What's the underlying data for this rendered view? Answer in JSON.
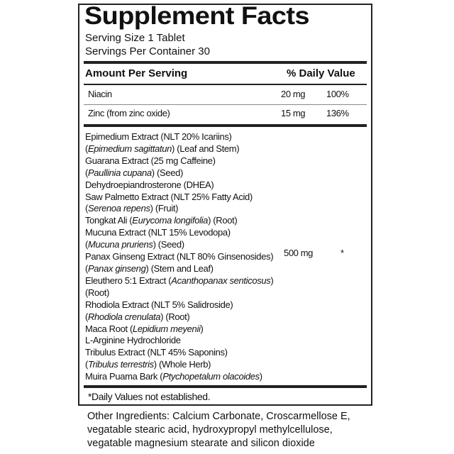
{
  "title": "Supplement Facts",
  "serving_size": "Serving Size 1 Tablet",
  "servings_per_container": "Servings Per Container 30",
  "header": {
    "amount": "Amount Per Serving",
    "daily_value": "% Daily Value"
  },
  "nutrients": [
    {
      "name": "Niacin",
      "amount": "20 mg",
      "dv": "100%"
    },
    {
      "name": "Zinc (from zinc oxide)",
      "amount": "15 mg",
      "dv": "136%"
    }
  ],
  "blend": {
    "amount": "500 mg",
    "dv": "*",
    "lines": [
      [
        {
          "t": "Epimedium Extract (NLT 20% Icariins)"
        }
      ],
      [
        {
          "t": "("
        },
        {
          "t": "Epimedium sagittatun",
          "i": true
        },
        {
          "t": ") (Leaf and Stem)"
        }
      ],
      [
        {
          "t": "Guarana Extract (25 mg Caffeine)"
        }
      ],
      [
        {
          "t": "("
        },
        {
          "t": "Paullinia cupana",
          "i": true
        },
        {
          "t": ")  (Seed)"
        }
      ],
      [
        {
          "t": "Dehydroepiandrosterone (DHEA)"
        }
      ],
      [
        {
          "t": "Saw Palmetto Extract (NLT 25% Fatty Acid)"
        }
      ],
      [
        {
          "t": "("
        },
        {
          "t": "Serenoa repens",
          "i": true
        },
        {
          "t": ") (Fruit)"
        }
      ],
      [
        {
          "t": "Tongkat Ali ("
        },
        {
          "t": "Eurycoma longifolia",
          "i": true
        },
        {
          "t": ") (Root)"
        }
      ],
      [
        {
          "t": "Mucuna Extract (NLT 15% Levodopa)"
        }
      ],
      [
        {
          "t": "("
        },
        {
          "t": "Mucuna pruriens",
          "i": true
        },
        {
          "t": ") (Seed)"
        }
      ],
      [
        {
          "t": "Panax Ginseng Extract (NLT 80% Ginsenosides)"
        }
      ],
      [
        {
          "t": "("
        },
        {
          "t": "Panax ginseng",
          "i": true
        },
        {
          "t": ") (Stem and Leaf)"
        }
      ],
      [
        {
          "t": "Eleuthero 5:1 Extract ("
        },
        {
          "t": "Acanthopanax senticosus",
          "i": true
        },
        {
          "t": ")"
        }
      ],
      [
        {
          "t": "(Root)"
        }
      ],
      [
        {
          "t": "Rhodiola Extract (NLT 5% Salidroside)"
        }
      ],
      [
        {
          "t": "("
        },
        {
          "t": "Rhodiola crenulata",
          "i": true
        },
        {
          "t": ") (Root)"
        }
      ],
      [
        {
          "t": "Maca Root ("
        },
        {
          "t": "Lepidium meyenii",
          "i": true
        },
        {
          "t": ")"
        }
      ],
      [
        {
          "t": "L-Arginine Hydrochloride"
        }
      ],
      [
        {
          "t": "Tribulus Extract (NLT 45% Saponins)"
        }
      ],
      [
        {
          "t": "("
        },
        {
          "t": "Tribulus terrestris",
          "i": true
        },
        {
          "t": ") (Whole Herb)"
        }
      ],
      [
        {
          "t": "Muira Puama Bark ("
        },
        {
          "t": "Ptychopetalum olacoides",
          "i": true
        },
        {
          "t": ")"
        }
      ]
    ]
  },
  "footnote": "*Daily Values not established.",
  "other_ingredients": [
    "Other Ingredients: Calcium Carbonate, Croscarmellose E,",
    "vegatable stearic acid, hydroxypropyl methylcellulose,",
    "vegatable magnesium stearate and silicon dioxide"
  ]
}
